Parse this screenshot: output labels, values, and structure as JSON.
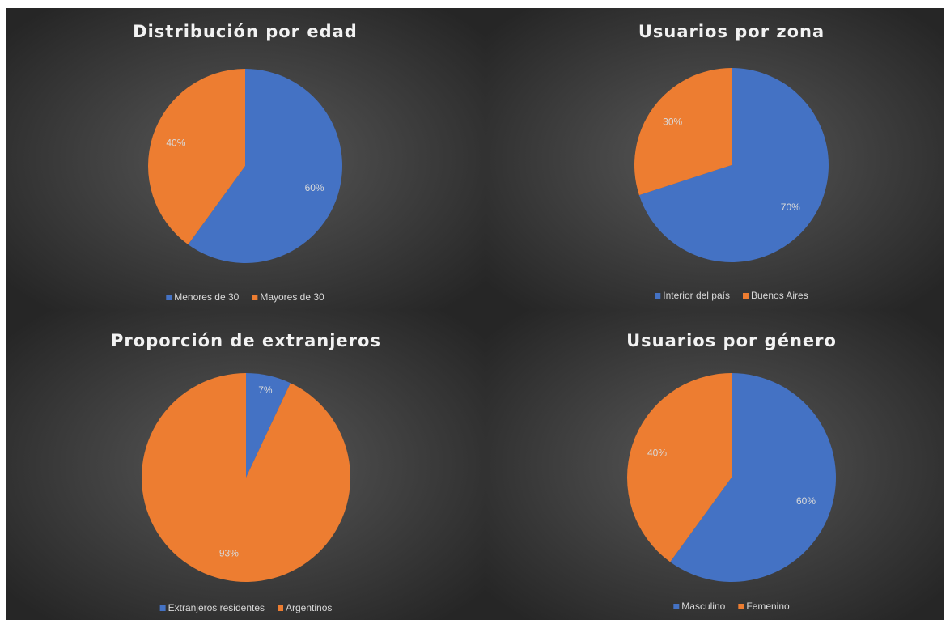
{
  "chart_data": [
    {
      "type": "pie",
      "title": "Distribución por edad",
      "categories": [
        "Menores de 30",
        "Mayores de 30"
      ],
      "values": [
        60,
        40
      ],
      "value_labels": [
        "60%",
        "40%"
      ],
      "colors": [
        "#4472c4",
        "#ed7d31"
      ],
      "legend": "bottom"
    },
    {
      "type": "pie",
      "title": "Usuarios por zona",
      "categories": [
        "Interior del país",
        "Buenos Aires"
      ],
      "values": [
        70,
        30
      ],
      "value_labels": [
        "70%",
        "30%"
      ],
      "colors": [
        "#4472c4",
        "#ed7d31"
      ],
      "legend": "bottom"
    },
    {
      "type": "pie",
      "title": "Proporción de extranjeros",
      "categories": [
        "Extranjeros residentes",
        "Argentinos"
      ],
      "values": [
        7,
        93
      ],
      "value_labels": [
        "7%",
        "93%"
      ],
      "colors": [
        "#4472c4",
        "#ed7d31"
      ],
      "legend": "bottom"
    },
    {
      "type": "pie",
      "title": "Usuarios por género",
      "categories": [
        "Masculino",
        "Femenino"
      ],
      "values": [
        60,
        40
      ],
      "value_labels": [
        "60%",
        "40%"
      ],
      "colors": [
        "#4472c4",
        "#ed7d31"
      ],
      "legend": "bottom"
    }
  ]
}
